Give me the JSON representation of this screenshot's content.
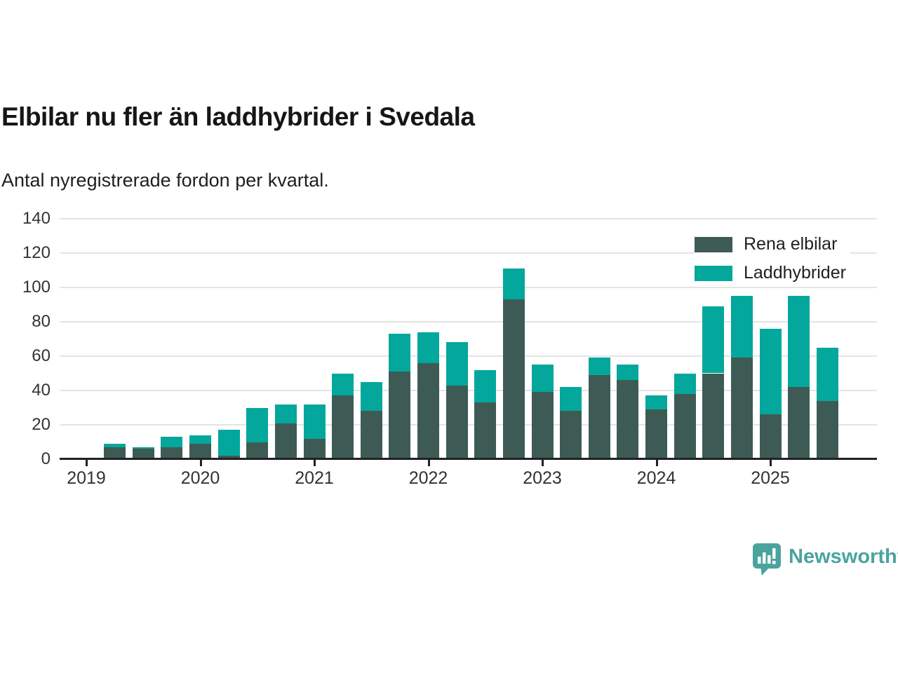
{
  "header": {
    "title": "Elbilar nu fler än laddhybrider i Svedala",
    "subtitle": "Antal nyregistrerade fordon per kvartal."
  },
  "chart_data": {
    "type": "bar",
    "stacked": true,
    "categories": [
      "2019 Q1",
      "2019 Q2",
      "2019 Q3",
      "2019 Q4",
      "2020 Q1",
      "2020 Q2",
      "2020 Q3",
      "2020 Q4",
      "2021 Q1",
      "2021 Q2",
      "2021 Q3",
      "2021 Q4",
      "2022 Q1",
      "2022 Q2",
      "2022 Q3",
      "2022 Q4",
      "2023 Q1",
      "2023 Q2",
      "2023 Q3",
      "2023 Q4",
      "2024 Q1",
      "2024 Q2",
      "2024 Q3",
      "2024 Q4",
      "2025 Q1",
      "2025 Q2"
    ],
    "series": [
      {
        "name": "Rena elbilar",
        "color": "#3d5b54",
        "values": [
          7,
          6,
          7,
          9,
          2,
          10,
          21,
          12,
          37,
          28,
          51,
          56,
          43,
          33,
          93,
          39,
          28,
          49,
          46,
          29,
          38,
          50,
          59,
          26,
          42,
          34
        ]
      },
      {
        "name": "Laddhybrider",
        "color": "#04a79c",
        "values": [
          2,
          1,
          6,
          5,
          15,
          20,
          11,
          20,
          13,
          17,
          22,
          18,
          25,
          19,
          18,
          16,
          14,
          10,
          9,
          8,
          12,
          39,
          36,
          50,
          53,
          31
        ]
      }
    ],
    "x_tick_labels": [
      "2019",
      "2020",
      "2021",
      "2022",
      "2023",
      "2024",
      "2025"
    ],
    "yticks": [
      0,
      20,
      40,
      60,
      80,
      100,
      120,
      140
    ],
    "ylim": [
      0,
      140
    ],
    "grid": true,
    "legend_position": "top-right",
    "gridline_color": "#e4e4e4",
    "axis_color": "#222222",
    "tick_label_color": "#333333"
  },
  "footer": {
    "brand": "Newsworthy",
    "brand_color": "#4aa49d",
    "logo_icon": "bar-chart-speech-bubble"
  }
}
